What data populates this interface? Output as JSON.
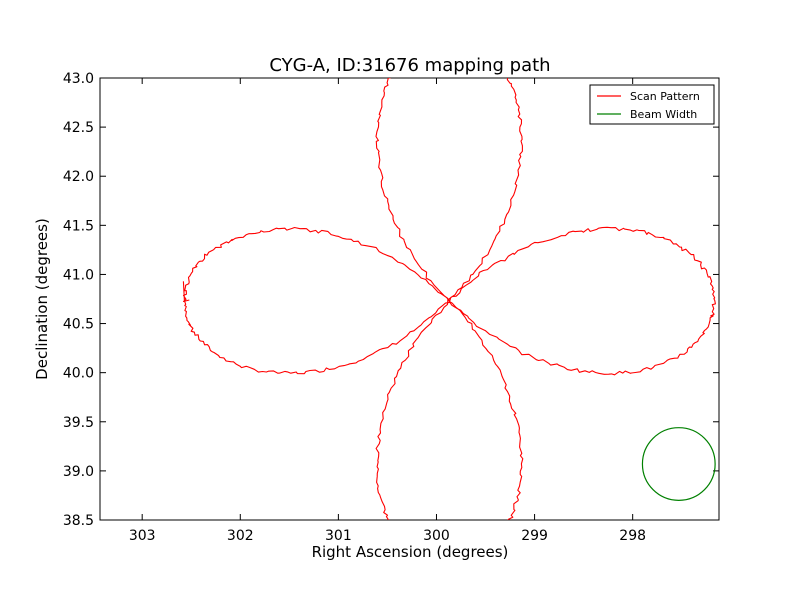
{
  "chart_data": {
    "type": "line",
    "title": "CYG-A, ID:31676 mapping path",
    "xlabel": "Right Ascension (degrees)",
    "ylabel": "Declination (degrees)",
    "xlim": [
      303.43,
      297.12
    ],
    "ylim": [
      38.5,
      43.0
    ],
    "x_ticks": [
      "303",
      "302",
      "301",
      "300",
      "299",
      "298"
    ],
    "x_tick_values": [
      303,
      302,
      301,
      300,
      299,
      298
    ],
    "y_ticks": [
      "38.5",
      "39.0",
      "39.5",
      "40.0",
      "40.5",
      "41.0",
      "41.5",
      "42.0",
      "42.5",
      "43.0"
    ],
    "y_tick_values": [
      38.5,
      39.0,
      39.5,
      40.0,
      40.5,
      41.0,
      41.5,
      42.0,
      42.5,
      43.0
    ],
    "grid": false,
    "legend_position": "top-right",
    "center": {
      "ra": 299.87,
      "dec": 40.73
    },
    "series": [
      {
        "name": "Scan Pattern",
        "color": "#ff0000",
        "pattern": "four-petal rosette",
        "petal_extent_deg": 2.7,
        "scan_start": {
          "ra": 302.58,
          "dec": 40.93
        },
        "scan_end": {
          "ra": 302.52,
          "dec": 40.74
        }
      },
      {
        "name": "Beam Width",
        "color": "#008000",
        "center": {
          "ra": 297.53,
          "dec": 39.07
        },
        "radius_deg": 0.37
      }
    ]
  }
}
